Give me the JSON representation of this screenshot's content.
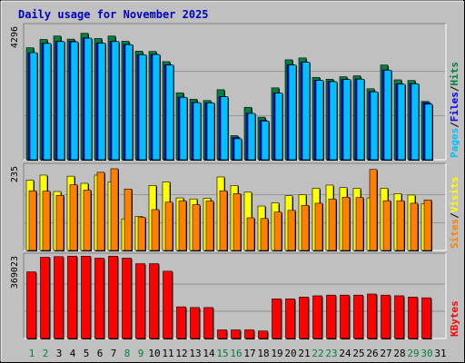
{
  "chart_data": {
    "type": "bar",
    "title": "Daily usage for November 2025",
    "categories": [
      "1",
      "2",
      "3",
      "4",
      "5",
      "6",
      "7",
      "8",
      "9",
      "10",
      "11",
      "12",
      "13",
      "14",
      "15",
      "16",
      "17",
      "18",
      "19",
      "20",
      "21",
      "22",
      "23",
      "24",
      "25",
      "26",
      "27",
      "28",
      "29",
      "30",
      "31"
    ],
    "weekend_days": [
      "1",
      "2",
      "8",
      "9",
      "15",
      "16",
      "22",
      "23",
      "29",
      "30"
    ],
    "colors": {
      "hits": "#008040",
      "files": "#0000ff",
      "pages": "#00c0ff",
      "visits": "#ffff00",
      "sites": "#ff8000",
      "kbytes": "#ff0000",
      "title": "#0000c0",
      "weekend_label": "#008040",
      "weekday_label": "#000000",
      "plot_bg": "#c0c0c0"
    },
    "panels": [
      {
        "key": "hits_files_pages",
        "ymax_label": "4296",
        "ymax": 4296,
        "legend": [
          "Pages",
          "/",
          "Files",
          "/",
          "Hits"
        ],
        "series": [
          {
            "name": "Hits",
            "values": [
              3630,
              3900,
              4010,
              3910,
              4100,
              3930,
              4010,
              3840,
              3520,
              3510,
              3180,
              2170,
              1960,
              1920,
              2270,
              780,
              1700,
              1380,
              2330,
              3240,
              3300,
              2670,
              2610,
              2690,
              2720,
              2300,
              3070,
              2590,
              2570,
              1890
            ]
          },
          {
            "name": "Files",
            "values": [
              3470,
              3780,
              3840,
              3840,
              3950,
              3790,
              3840,
              3740,
              3410,
              3420,
              3080,
              2030,
              1860,
              1850,
              2050,
              720,
              1510,
              1280,
              2170,
              3080,
              3170,
              2580,
              2540,
              2610,
              2620,
              2210,
              2910,
              2460,
              2470,
              1850
            ]
          },
          {
            "name": "Pages",
            "values": [
              3470,
              3770,
              3830,
              3820,
              3940,
              3780,
              3830,
              3730,
              3400,
              3410,
              3070,
              2020,
              1850,
              1840,
              2040,
              680,
              1500,
              1250,
              2160,
              3070,
              3160,
              2570,
              2530,
              2600,
              2610,
              2200,
              2900,
              2450,
              2460,
              1800
            ]
          }
        ]
      },
      {
        "key": "visits_sites",
        "ymax_label": "235",
        "ymax": 235,
        "legend": [
          "Sites",
          "/",
          "Visits"
        ],
        "series": [
          {
            "name": "Visits",
            "values": [
              198,
              212,
              166,
              209,
              189,
              212,
              193,
              89,
              96,
              183,
              193,
              148,
              145,
              147,
              207,
              183,
              164,
              125,
              134,
              154,
              157,
              175,
              184,
              177,
              175,
              148,
              175,
              160,
              156,
              132
            ]
          },
          {
            "name": "Sites",
            "values": [
              168,
              167,
              155,
              185,
              170,
              220,
              230,
              173,
              93,
              115,
              136,
              140,
              129,
              139,
              168,
              160,
              92,
              90,
              108,
              113,
              127,
              133,
              145,
              150,
              149,
              228,
              140,
              140,
              133,
              142
            ]
          }
        ]
      },
      {
        "key": "kbytes",
        "ymax_label": "369023",
        "ymax": 369023,
        "legend": [
          "KBytes"
        ],
        "series": [
          {
            "name": "KBytes",
            "values": [
              301000,
              367000,
              370000,
              372000,
              372000,
              363000,
              372000,
              363000,
              338000,
              338000,
              304000,
              143000,
              140000,
              140000,
              39000,
              39000,
              39000,
              34000,
              179000,
              179000,
              187000,
              193000,
              196000,
              196000,
              196000,
              201000,
              196000,
              193000,
              187000,
              184000
            ]
          }
        ]
      }
    ]
  }
}
